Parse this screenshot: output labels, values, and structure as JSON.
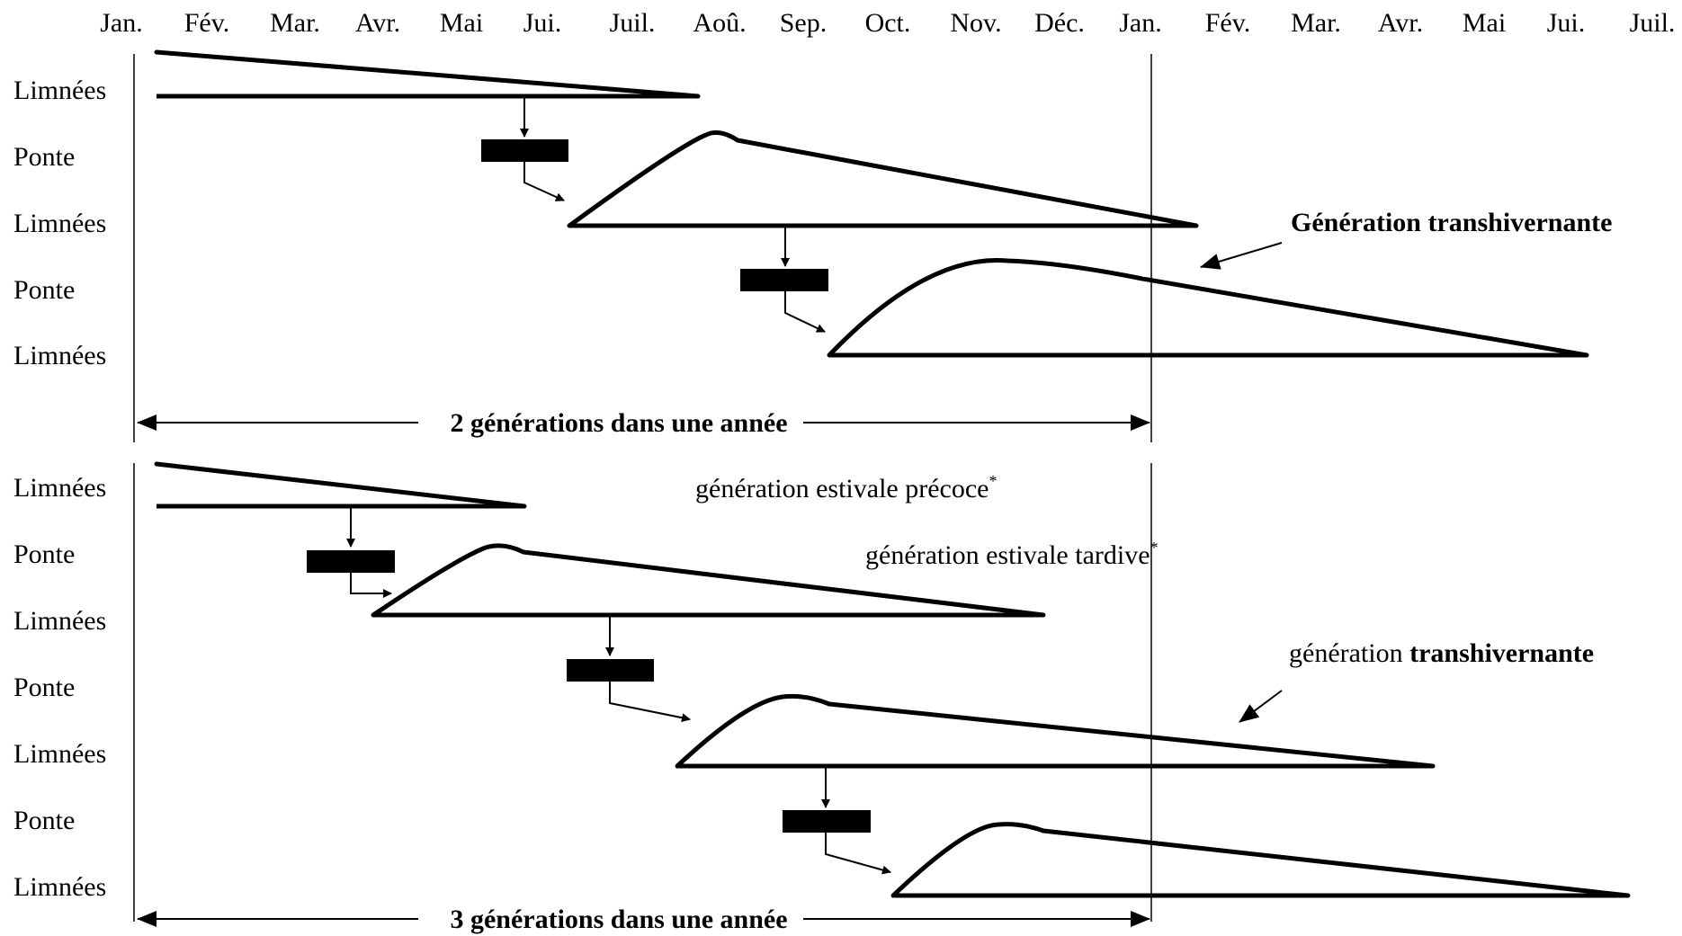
{
  "months": [
    "Jan.",
    "Fév.",
    "Mar.",
    "Avr.",
    "Mai",
    "Jui.",
    "Juil.",
    "Aoû.",
    "Sep.",
    "Oct.",
    "Nov.",
    "Déc.",
    "Jan.",
    "Fév.",
    "Mar.",
    "Avr.",
    "Mai",
    "Jui.",
    "Juil."
  ],
  "top_panel": {
    "rows": [
      "Limnées",
      "Ponte",
      "Limnées",
      "Ponte",
      "Limnées"
    ],
    "annotation": "Génération transhivernante",
    "span_label": "2 générations dans une année"
  },
  "bottom_panel": {
    "rows": [
      "Limnées",
      "Ponte",
      "Limnées",
      "Ponte",
      "Limnées",
      "Ponte",
      "Limnées"
    ],
    "note_early": "génération estivale précoce",
    "note_late": "génération estivale tardive",
    "note_star": "*",
    "annotation_prefix": "génération ",
    "annotation_bold": "transhivernante",
    "span_label": "3 générations dans une année"
  },
  "colors": {
    "ink": "#000000",
    "background": "#ffffff"
  }
}
